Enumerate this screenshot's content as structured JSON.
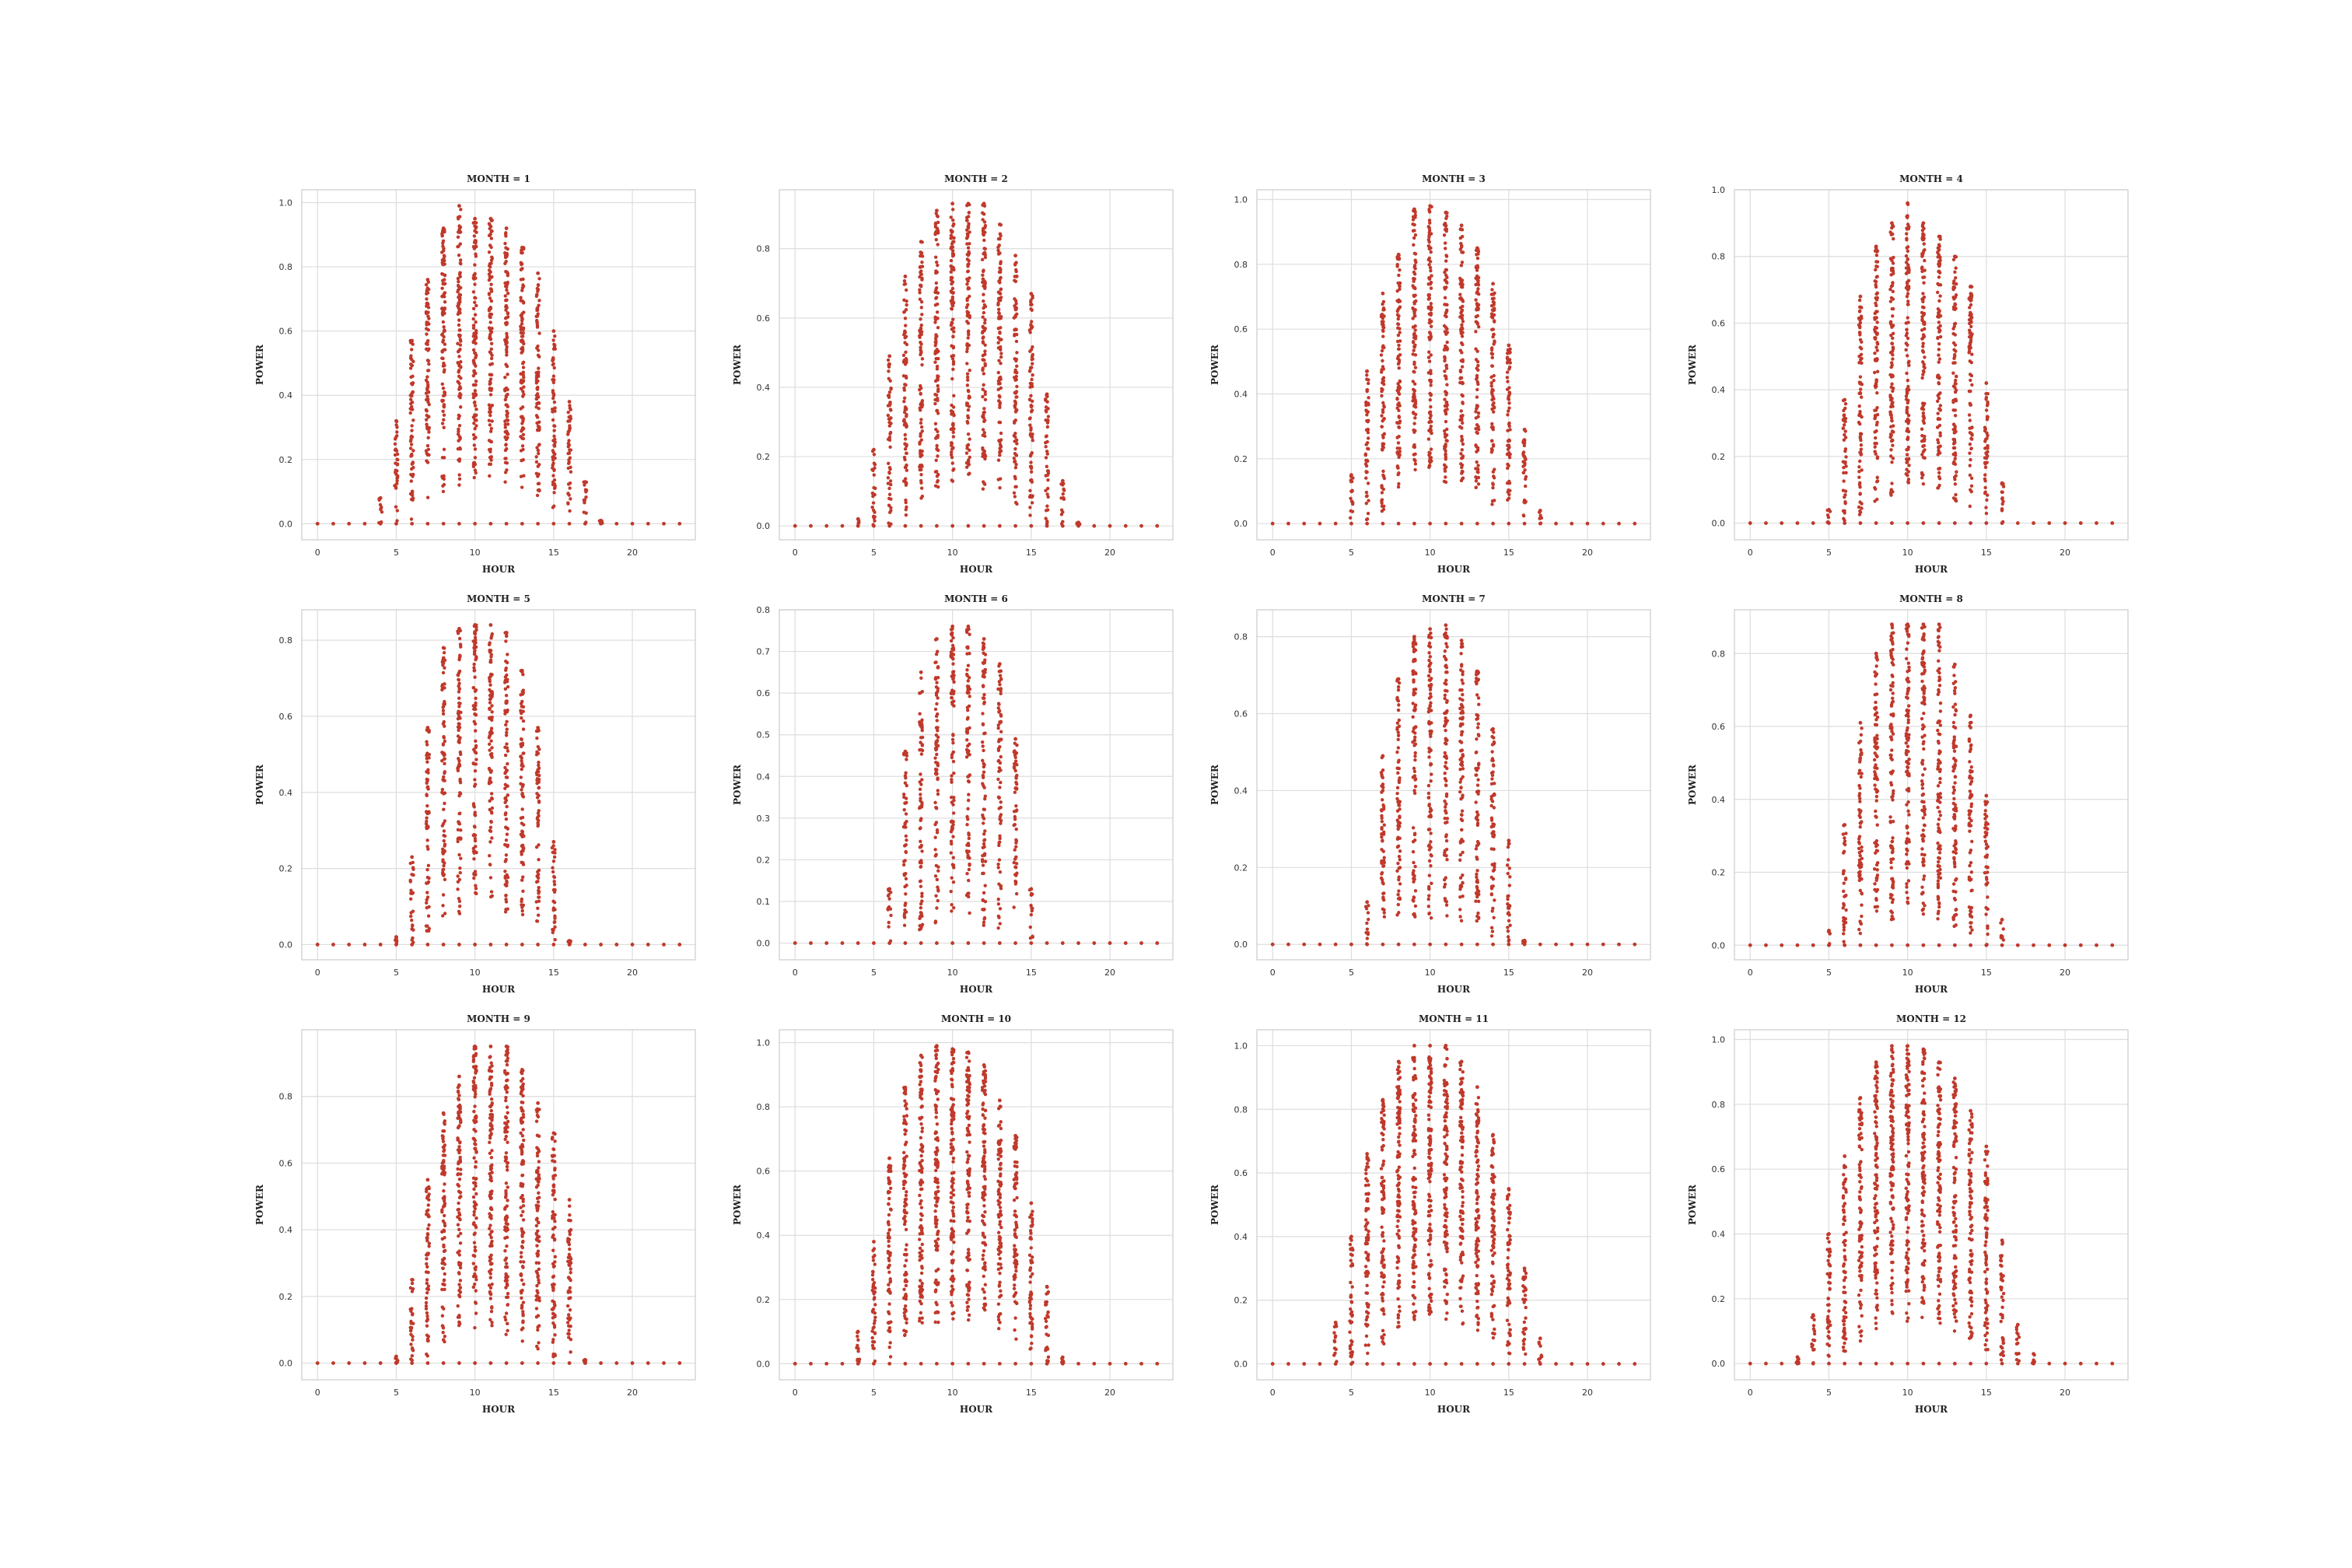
{
  "figure": {
    "rows": 3,
    "cols": 4,
    "point_color": "#c0392b"
  },
  "chart_data": [
    {
      "type": "scatter",
      "title": "MONTH = 1",
      "xlabel": "HOUR",
      "ylabel": "POWER",
      "xlim": [
        -1,
        24
      ],
      "ylim": [
        -0.05,
        1.04
      ],
      "xticks": [
        0,
        5,
        10,
        15,
        20
      ],
      "yticks": [
        0.0,
        0.2,
        0.4,
        0.6,
        0.8,
        1.0
      ],
      "tick_decimals": 1,
      "hours": [
        0,
        1,
        2,
        3,
        4,
        5,
        6,
        7,
        8,
        9,
        10,
        11,
        12,
        13,
        14,
        15,
        16,
        17,
        18,
        19,
        20,
        21,
        22,
        23
      ],
      "max_power": [
        0,
        0,
        0,
        0,
        0.08,
        0.32,
        0.57,
        0.76,
        0.92,
        0.99,
        0.95,
        0.95,
        0.92,
        0.86,
        0.78,
        0.6,
        0.38,
        0.13,
        0.01,
        0,
        0,
        0,
        0,
        0
      ],
      "min_power": [
        0,
        0,
        0,
        0,
        0,
        0,
        0,
        0.05,
        0.1,
        0.12,
        0.13,
        0.13,
        0.12,
        0.1,
        0.08,
        0.04,
        0,
        0,
        0,
        0,
        0,
        0,
        0,
        0
      ]
    },
    {
      "type": "scatter",
      "title": "MONTH = 2",
      "xlabel": "HOUR",
      "ylabel": "POWER",
      "xlim": [
        -1,
        24
      ],
      "ylim": [
        -0.04,
        0.97
      ],
      "xticks": [
        0,
        5,
        10,
        15,
        20
      ],
      "yticks": [
        0.0,
        0.2,
        0.4,
        0.6,
        0.8
      ],
      "tick_decimals": 1,
      "hours": [
        0,
        1,
        2,
        3,
        4,
        5,
        6,
        7,
        8,
        9,
        10,
        11,
        12,
        13,
        14,
        15,
        16,
        17,
        18,
        19,
        20,
        21,
        22,
        23
      ],
      "max_power": [
        0,
        0,
        0,
        0,
        0.02,
        0.22,
        0.49,
        0.72,
        0.82,
        0.91,
        0.93,
        0.93,
        0.93,
        0.87,
        0.78,
        0.67,
        0.38,
        0.13,
        0.01,
        0,
        0,
        0,
        0,
        0
      ],
      "min_power": [
        0,
        0,
        0,
        0,
        0,
        0,
        0,
        0.03,
        0.08,
        0.1,
        0.12,
        0.12,
        0.1,
        0.08,
        0.06,
        0.02,
        0,
        0,
        0,
        0,
        0,
        0,
        0,
        0
      ]
    },
    {
      "type": "scatter",
      "title": "MONTH = 3",
      "xlabel": "HOUR",
      "ylabel": "POWER",
      "xlim": [
        -1,
        24
      ],
      "ylim": [
        -0.05,
        1.03
      ],
      "xticks": [
        0,
        5,
        10,
        15,
        20
      ],
      "yticks": [
        0.0,
        0.2,
        0.4,
        0.6,
        0.8,
        1.0
      ],
      "tick_decimals": 1,
      "hours": [
        0,
        1,
        2,
        3,
        4,
        5,
        6,
        7,
        8,
        9,
        10,
        11,
        12,
        13,
        14,
        15,
        16,
        17,
        18,
        19,
        20,
        21,
        22,
        23
      ],
      "max_power": [
        0,
        0,
        0,
        0,
        0,
        0.15,
        0.47,
        0.71,
        0.83,
        0.97,
        0.98,
        0.96,
        0.92,
        0.85,
        0.74,
        0.55,
        0.29,
        0.04,
        0,
        0,
        0,
        0,
        0,
        0
      ],
      "min_power": [
        0,
        0,
        0,
        0,
        0,
        0,
        0,
        0.03,
        0.08,
        0.1,
        0.12,
        0.12,
        0.1,
        0.08,
        0.05,
        0.02,
        0,
        0,
        0,
        0,
        0,
        0,
        0,
        0
      ]
    },
    {
      "type": "scatter",
      "title": "MONTH = 4",
      "xlabel": "HOUR",
      "ylabel": "POWER",
      "xlim": [
        -1,
        24
      ],
      "ylim": [
        -0.05,
        1.0
      ],
      "xticks": [
        0,
        5,
        10,
        15,
        20
      ],
      "yticks": [
        0.0,
        0.2,
        0.4,
        0.6,
        0.8,
        1.0
      ],
      "tick_decimals": 1,
      "hours": [
        0,
        1,
        2,
        3,
        4,
        5,
        6,
        7,
        8,
        9,
        10,
        11,
        12,
        13,
        14,
        15,
        16,
        17,
        18,
        19,
        20,
        21,
        22,
        23
      ],
      "max_power": [
        0,
        0,
        0,
        0,
        0,
        0.04,
        0.37,
        0.68,
        0.83,
        0.9,
        0.96,
        0.9,
        0.86,
        0.8,
        0.71,
        0.42,
        0.12,
        0,
        0,
        0,
        0,
        0,
        0,
        0
      ],
      "min_power": [
        0,
        0,
        0,
        0,
        0,
        0,
        0,
        0.02,
        0.06,
        0.08,
        0.1,
        0.1,
        0.08,
        0.06,
        0.04,
        0.01,
        0,
        0,
        0,
        0,
        0,
        0,
        0,
        0
      ]
    },
    {
      "type": "scatter",
      "title": "MONTH = 5",
      "xlabel": "HOUR",
      "ylabel": "POWER",
      "xlim": [
        -1,
        24
      ],
      "ylim": [
        -0.04,
        0.88
      ],
      "xticks": [
        0,
        5,
        10,
        15,
        20
      ],
      "yticks": [
        0.0,
        0.2,
        0.4,
        0.6,
        0.8
      ],
      "tick_decimals": 1,
      "hours": [
        0,
        1,
        2,
        3,
        4,
        5,
        6,
        7,
        8,
        9,
        10,
        11,
        12,
        13,
        14,
        15,
        16,
        17,
        18,
        19,
        20,
        21,
        22,
        23
      ],
      "max_power": [
        0,
        0,
        0,
        0,
        0,
        0.02,
        0.23,
        0.57,
        0.78,
        0.83,
        0.84,
        0.84,
        0.82,
        0.72,
        0.57,
        0.27,
        0.01,
        0,
        0,
        0,
        0,
        0,
        0,
        0
      ],
      "min_power": [
        0,
        0,
        0,
        0,
        0,
        0,
        0,
        0.02,
        0.06,
        0.08,
        0.1,
        0.1,
        0.08,
        0.06,
        0.04,
        0,
        0,
        0,
        0,
        0,
        0,
        0,
        0,
        0
      ]
    },
    {
      "type": "scatter",
      "title": "MONTH = 6",
      "xlabel": "HOUR",
      "ylabel": "POWER",
      "xlim": [
        -1,
        24
      ],
      "ylim": [
        -0.04,
        0.8
      ],
      "xticks": [
        0,
        5,
        10,
        15,
        20
      ],
      "yticks": [
        0.0,
        0.1,
        0.2,
        0.3,
        0.4,
        0.5,
        0.6,
        0.7,
        0.8
      ],
      "tick_decimals": 1,
      "hours": [
        0,
        1,
        2,
        3,
        4,
        5,
        6,
        7,
        8,
        9,
        10,
        11,
        12,
        13,
        14,
        15,
        16,
        17,
        18,
        19,
        20,
        21,
        22,
        23
      ],
      "max_power": [
        0,
        0,
        0,
        0,
        0,
        0,
        0.13,
        0.46,
        0.65,
        0.73,
        0.76,
        0.76,
        0.73,
        0.67,
        0.49,
        0.13,
        0,
        0,
        0,
        0,
        0,
        0,
        0,
        0
      ],
      "min_power": [
        0,
        0,
        0,
        0,
        0,
        0,
        0,
        0.01,
        0.03,
        0.04,
        0.05,
        0.05,
        0.04,
        0.03,
        0.02,
        0,
        0,
        0,
        0,
        0,
        0,
        0,
        0,
        0
      ]
    },
    {
      "type": "scatter",
      "title": "MONTH = 7",
      "xlabel": "HOUR",
      "ylabel": "POWER",
      "xlim": [
        -1,
        24
      ],
      "ylim": [
        -0.04,
        0.87
      ],
      "xticks": [
        0,
        5,
        10,
        15,
        20
      ],
      "yticks": [
        0.0,
        0.2,
        0.4,
        0.6,
        0.8
      ],
      "tick_decimals": 1,
      "hours": [
        0,
        1,
        2,
        3,
        4,
        5,
        6,
        7,
        8,
        9,
        10,
        11,
        12,
        13,
        14,
        15,
        16,
        17,
        18,
        19,
        20,
        21,
        22,
        23
      ],
      "max_power": [
        0,
        0,
        0,
        0,
        0,
        0,
        0.11,
        0.49,
        0.69,
        0.8,
        0.82,
        0.83,
        0.79,
        0.71,
        0.56,
        0.27,
        0.01,
        0,
        0,
        0,
        0,
        0,
        0,
        0
      ],
      "min_power": [
        0,
        0,
        0,
        0,
        0,
        0,
        0,
        0.01,
        0.04,
        0.05,
        0.06,
        0.06,
        0.05,
        0.04,
        0.02,
        0,
        0,
        0,
        0,
        0,
        0,
        0,
        0,
        0
      ]
    },
    {
      "type": "scatter",
      "title": "MONTH = 8",
      "xlabel": "HOUR",
      "ylabel": "POWER",
      "xlim": [
        -1,
        24
      ],
      "ylim": [
        -0.04,
        0.92
      ],
      "xticks": [
        0,
        5,
        10,
        15,
        20
      ],
      "yticks": [
        0.0,
        0.2,
        0.4,
        0.6,
        0.8
      ],
      "tick_decimals": 1,
      "hours": [
        0,
        1,
        2,
        3,
        4,
        5,
        6,
        7,
        8,
        9,
        10,
        11,
        12,
        13,
        14,
        15,
        16,
        17,
        18,
        19,
        20,
        21,
        22,
        23
      ],
      "max_power": [
        0,
        0,
        0,
        0,
        0,
        0.04,
        0.33,
        0.61,
        0.8,
        0.88,
        0.88,
        0.88,
        0.88,
        0.77,
        0.63,
        0.41,
        0.07,
        0,
        0,
        0,
        0,
        0,
        0,
        0
      ],
      "min_power": [
        0,
        0,
        0,
        0,
        0,
        0,
        0,
        0.02,
        0.05,
        0.06,
        0.08,
        0.08,
        0.06,
        0.05,
        0.03,
        0,
        0,
        0,
        0,
        0,
        0,
        0,
        0,
        0
      ]
    },
    {
      "type": "scatter",
      "title": "MONTH = 9",
      "xlabel": "HOUR",
      "ylabel": "POWER",
      "xlim": [
        -1,
        24
      ],
      "ylim": [
        -0.05,
        1.0
      ],
      "xticks": [
        0,
        5,
        10,
        15,
        20
      ],
      "yticks": [
        0.0,
        0.2,
        0.4,
        0.6,
        0.8
      ],
      "tick_decimals": 1,
      "hours": [
        0,
        1,
        2,
        3,
        4,
        5,
        6,
        7,
        8,
        9,
        10,
        11,
        12,
        13,
        14,
        15,
        16,
        17,
        18,
        19,
        20,
        21,
        22,
        23
      ],
      "max_power": [
        0,
        0,
        0,
        0,
        0,
        0.02,
        0.25,
        0.55,
        0.75,
        0.86,
        0.95,
        0.95,
        0.95,
        0.88,
        0.78,
        0.69,
        0.49,
        0.01,
        0,
        0,
        0,
        0,
        0,
        0
      ],
      "min_power": [
        0,
        0,
        0,
        0,
        0,
        0,
        0,
        0.02,
        0.06,
        0.08,
        0.1,
        0.1,
        0.08,
        0.06,
        0.04,
        0.01,
        0,
        0,
        0,
        0,
        0,
        0,
        0,
        0
      ]
    },
    {
      "type": "scatter",
      "title": "MONTH = 10",
      "xlabel": "HOUR",
      "ylabel": "POWER",
      "xlim": [
        -1,
        24
      ],
      "ylim": [
        -0.05,
        1.04
      ],
      "xticks": [
        0,
        5,
        10,
        15,
        20
      ],
      "yticks": [
        0.0,
        0.2,
        0.4,
        0.6,
        0.8,
        1.0
      ],
      "tick_decimals": 1,
      "hours": [
        0,
        1,
        2,
        3,
        4,
        5,
        6,
        7,
        8,
        9,
        10,
        11,
        12,
        13,
        14,
        15,
        16,
        17,
        18,
        19,
        20,
        21,
        22,
        23
      ],
      "max_power": [
        0,
        0,
        0,
        0,
        0.1,
        0.38,
        0.64,
        0.86,
        0.96,
        0.99,
        0.98,
        0.97,
        0.93,
        0.82,
        0.71,
        0.5,
        0.24,
        0.02,
        0,
        0,
        0,
        0,
        0,
        0
      ],
      "min_power": [
        0,
        0,
        0,
        0,
        0,
        0,
        0.02,
        0.06,
        0.1,
        0.12,
        0.13,
        0.13,
        0.12,
        0.1,
        0.07,
        0.03,
        0,
        0,
        0,
        0,
        0,
        0,
        0,
        0
      ]
    },
    {
      "type": "scatter",
      "title": "MONTH = 11",
      "xlabel": "HOUR",
      "ylabel": "POWER",
      "xlim": [
        -1,
        24
      ],
      "ylim": [
        -0.05,
        1.05
      ],
      "xticks": [
        0,
        5,
        10,
        15,
        20
      ],
      "yticks": [
        0.0,
        0.2,
        0.4,
        0.6,
        0.8,
        1.0
      ],
      "tick_decimals": 1,
      "hours": [
        0,
        1,
        2,
        3,
        4,
        5,
        6,
        7,
        8,
        9,
        10,
        11,
        12,
        13,
        14,
        15,
        16,
        17,
        18,
        19,
        20,
        21,
        22,
        23
      ],
      "max_power": [
        0,
        0,
        0,
        0,
        0.13,
        0.4,
        0.66,
        0.83,
        0.95,
        1.0,
        1.0,
        1.0,
        0.95,
        0.87,
        0.72,
        0.55,
        0.3,
        0.08,
        0,
        0,
        0,
        0,
        0,
        0
      ],
      "min_power": [
        0,
        0,
        0,
        0,
        0,
        0,
        0.02,
        0.06,
        0.1,
        0.12,
        0.13,
        0.13,
        0.12,
        0.1,
        0.07,
        0.03,
        0,
        0,
        0,
        0,
        0,
        0,
        0,
        0
      ]
    },
    {
      "type": "scatter",
      "title": "MONTH = 12",
      "xlabel": "HOUR",
      "ylabel": "POWER",
      "xlim": [
        -1,
        24
      ],
      "ylim": [
        -0.05,
        1.03
      ],
      "xticks": [
        0,
        5,
        10,
        15,
        20
      ],
      "yticks": [
        0.0,
        0.2,
        0.4,
        0.6,
        0.8,
        1.0
      ],
      "tick_decimals": 1,
      "hours": [
        0,
        1,
        2,
        3,
        4,
        5,
        6,
        7,
        8,
        9,
        10,
        11,
        12,
        13,
        14,
        15,
        16,
        17,
        18,
        19,
        20,
        21,
        22,
        23
      ],
      "max_power": [
        0,
        0,
        0,
        0.02,
        0.15,
        0.4,
        0.64,
        0.82,
        0.93,
        0.98,
        0.98,
        0.97,
        0.93,
        0.88,
        0.78,
        0.67,
        0.38,
        0.12,
        0.03,
        0,
        0,
        0,
        0,
        0
      ],
      "min_power": [
        0,
        0,
        0,
        0,
        0,
        0,
        0.02,
        0.06,
        0.1,
        0.12,
        0.13,
        0.13,
        0.12,
        0.1,
        0.07,
        0.03,
        0,
        0,
        0,
        0,
        0,
        0,
        0,
        0
      ]
    }
  ]
}
